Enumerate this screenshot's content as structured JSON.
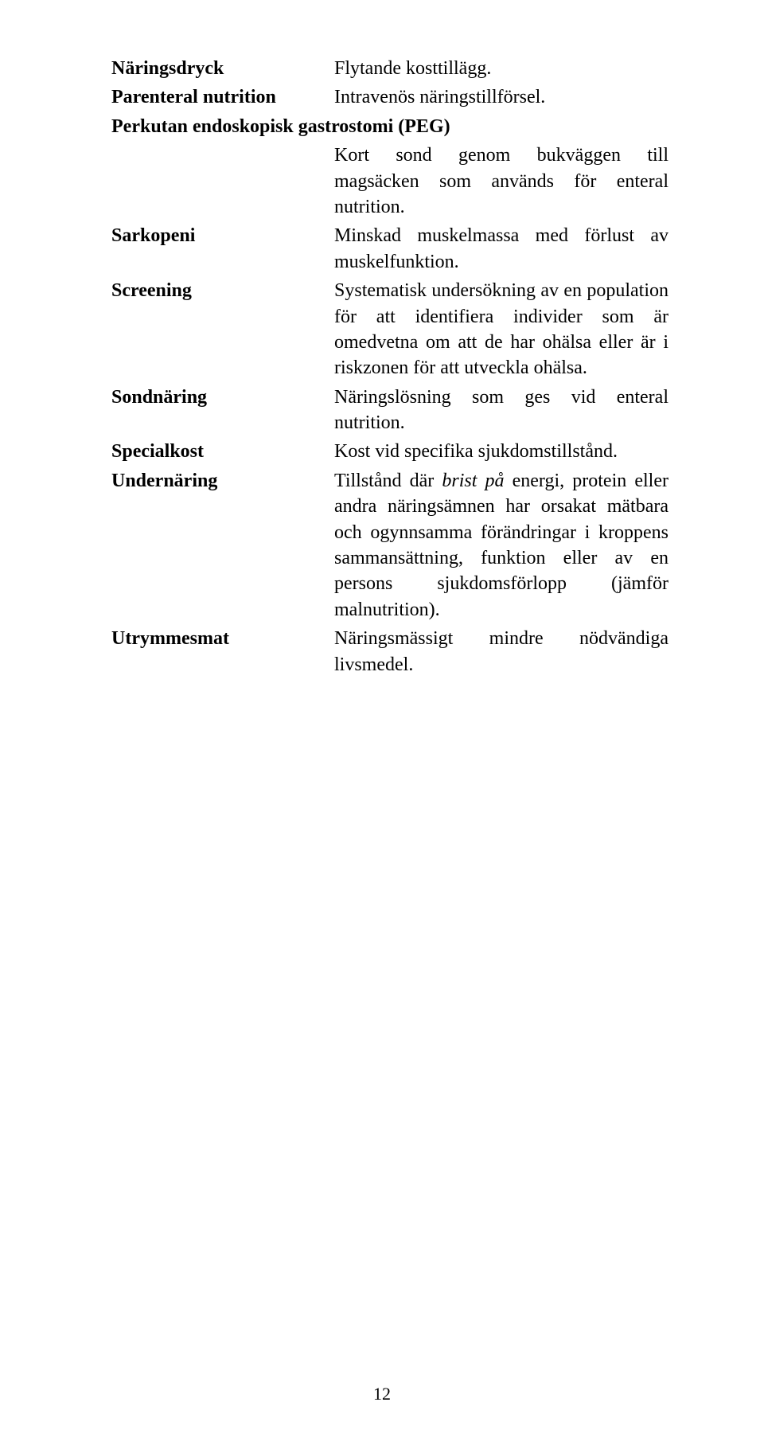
{
  "page_number": "12",
  "entries": [
    {
      "term": "Näringsdryck",
      "def_html": "Flytande kosttillägg."
    },
    {
      "term": "Parenteral nutrition",
      "def_html": "Intravenös näringstillförsel."
    },
    {
      "term": "Perkutan endoskopisk gastrostomi (PEG)",
      "def_html": "Kort sond genom bukväggen till magsäcken som används för enteral nutrition.",
      "full_width_term": true
    },
    {
      "term": "Sarkopeni",
      "def_html": "Minskad muskelmassa med förlust av muskel­funktion."
    },
    {
      "term": "Screening",
      "def_html": "Systematisk undersökning av en population för att identifiera individer som är omedvetna om att de har ohälsa eller är i riskzonen för att utveckla ohälsa."
    },
    {
      "term": "Sondnäring",
      "def_html": "Näringslösning som ges vid enteral nutrition."
    },
    {
      "term": "Specialkost",
      "def_html": "Kost vid specifika sjukdomstillstånd."
    },
    {
      "term": "Undernäring",
      "def_html": "Tillstånd där <span class=\"italic\">brist på</span> energi, protein eller andra näringsämnen har orsakat mätbara och ogynn­samma förändringar i kroppens sammansättning, funktion eller av en persons sjukdomsförlopp (jämför malnutrition)."
    },
    {
      "term": "Utrymmesmat",
      "def_html": "Näringsmässigt mindre nödvändiga livsmedel."
    }
  ]
}
